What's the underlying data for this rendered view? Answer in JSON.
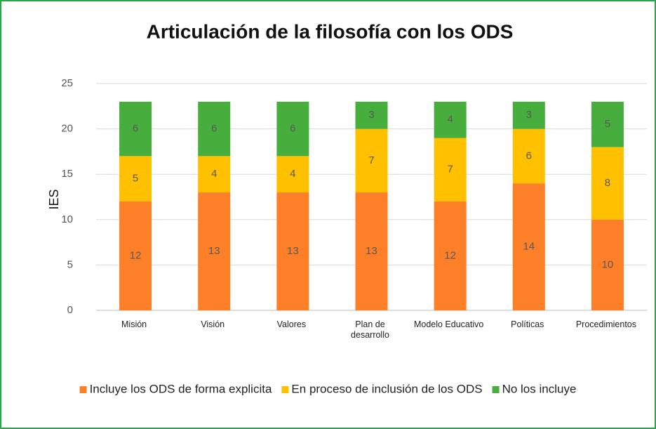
{
  "chart_data": {
    "type": "stacked_bar",
    "title": "Articulación de la filosofía con los ODS",
    "ylabel": "IES",
    "categories": [
      "Misión",
      "Visión",
      "Valores",
      "Plan de desarrollo",
      "Modelo Educativo",
      "Políticas",
      "Procedimientos"
    ],
    "series": [
      {
        "name": "Incluye los ODS de forma explicita",
        "color": "#fd7f28",
        "values": [
          12,
          13,
          13,
          13,
          12,
          14,
          10
        ]
      },
      {
        "name": "En proceso de inclusión de los ODS",
        "color": "#ffc000",
        "values": [
          5,
          4,
          4,
          7,
          7,
          6,
          8
        ]
      },
      {
        "name": "No los incluye",
        "color": "#47ad3d",
        "values": [
          6,
          6,
          6,
          3,
          4,
          3,
          5
        ]
      }
    ],
    "ylim": [
      0,
      25
    ],
    "yticks": [
      0,
      5,
      10,
      15,
      20,
      25
    ],
    "grid": true,
    "legend": "bottom"
  }
}
